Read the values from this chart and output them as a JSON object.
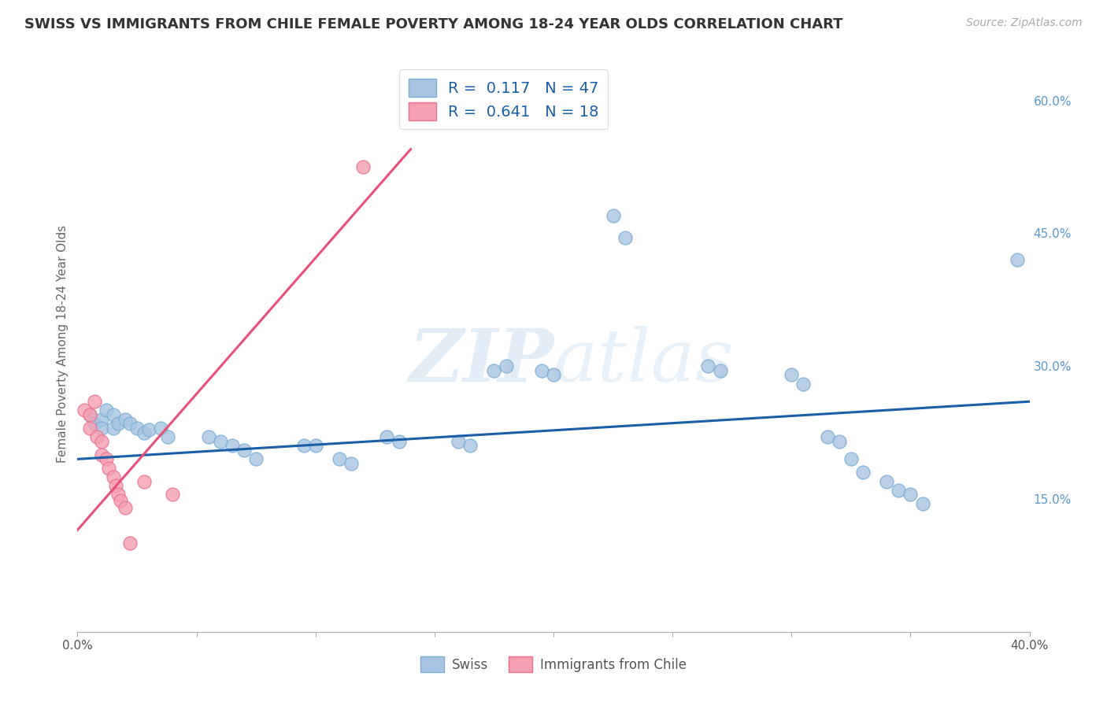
{
  "title": "SWISS VS IMMIGRANTS FROM CHILE FEMALE POVERTY AMONG 18-24 YEAR OLDS CORRELATION CHART",
  "source": "Source: ZipAtlas.com",
  "ylabel": "Female Poverty Among 18-24 Year Olds",
  "xlim": [
    0.0,
    0.4
  ],
  "ylim": [
    0.0,
    0.65
  ],
  "swiss_color": "#a8c4e0",
  "chile_color": "#f4a0b0",
  "swiss_line_color": "#1a5fa8",
  "chile_line_color": "#e8507a",
  "watermark_zip": "ZIP",
  "watermark_atlas": "atlas",
  "background_color": "#ffffff",
  "swiss_points": [
    [
      0.005,
      0.245
    ],
    [
      0.007,
      0.235
    ],
    [
      0.01,
      0.24
    ],
    [
      0.01,
      0.23
    ],
    [
      0.012,
      0.25
    ],
    [
      0.015,
      0.245
    ],
    [
      0.015,
      0.23
    ],
    [
      0.017,
      0.235
    ],
    [
      0.02,
      0.24
    ],
    [
      0.022,
      0.235
    ],
    [
      0.025,
      0.23
    ],
    [
      0.028,
      0.225
    ],
    [
      0.03,
      0.228
    ],
    [
      0.035,
      0.23
    ],
    [
      0.038,
      0.22
    ],
    [
      0.055,
      0.22
    ],
    [
      0.06,
      0.215
    ],
    [
      0.065,
      0.21
    ],
    [
      0.07,
      0.205
    ],
    [
      0.075,
      0.195
    ],
    [
      0.095,
      0.21
    ],
    [
      0.1,
      0.21
    ],
    [
      0.11,
      0.195
    ],
    [
      0.115,
      0.19
    ],
    [
      0.13,
      0.22
    ],
    [
      0.135,
      0.215
    ],
    [
      0.16,
      0.215
    ],
    [
      0.165,
      0.21
    ],
    [
      0.175,
      0.295
    ],
    [
      0.18,
      0.3
    ],
    [
      0.195,
      0.295
    ],
    [
      0.2,
      0.29
    ],
    [
      0.225,
      0.47
    ],
    [
      0.23,
      0.445
    ],
    [
      0.265,
      0.3
    ],
    [
      0.27,
      0.295
    ],
    [
      0.3,
      0.29
    ],
    [
      0.305,
      0.28
    ],
    [
      0.315,
      0.22
    ],
    [
      0.32,
      0.215
    ],
    [
      0.325,
      0.195
    ],
    [
      0.33,
      0.18
    ],
    [
      0.34,
      0.17
    ],
    [
      0.345,
      0.16
    ],
    [
      0.35,
      0.155
    ],
    [
      0.355,
      0.145
    ],
    [
      0.395,
      0.42
    ]
  ],
  "chile_points": [
    [
      0.003,
      0.25
    ],
    [
      0.005,
      0.245
    ],
    [
      0.005,
      0.23
    ],
    [
      0.007,
      0.26
    ],
    [
      0.008,
      0.22
    ],
    [
      0.01,
      0.215
    ],
    [
      0.01,
      0.2
    ],
    [
      0.012,
      0.195
    ],
    [
      0.013,
      0.185
    ],
    [
      0.015,
      0.175
    ],
    [
      0.016,
      0.165
    ],
    [
      0.017,
      0.155
    ],
    [
      0.018,
      0.148
    ],
    [
      0.02,
      0.14
    ],
    [
      0.022,
      0.1
    ],
    [
      0.028,
      0.17
    ],
    [
      0.04,
      0.155
    ],
    [
      0.12,
      0.525
    ]
  ],
  "swiss_trendline_x": [
    0.0,
    0.4
  ],
  "swiss_trendline_y": [
    0.195,
    0.26
  ],
  "chile_trendline_x": [
    0.0,
    0.14
  ],
  "chile_trendline_y": [
    0.115,
    0.545
  ]
}
